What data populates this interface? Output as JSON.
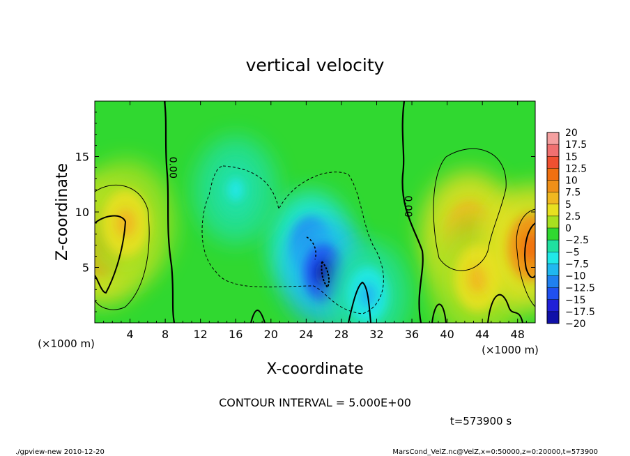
{
  "chart_data": {
    "type": "heatmap",
    "title": "vertical velocity",
    "xlabel": "X-coordinate",
    "ylabel": "Z-coordinate",
    "x_unit_label": "(×1000 m)",
    "y_unit_label": "(×1000 m)",
    "xlim": [
      0,
      50
    ],
    "ylim": [
      0,
      20
    ],
    "x_ticks": [
      4,
      8,
      12,
      16,
      20,
      24,
      28,
      32,
      36,
      40,
      44,
      48
    ],
    "y_ticks": [
      5,
      10,
      15
    ],
    "colorbar": {
      "levels": [
        "20",
        "17.5",
        "15",
        "12.5",
        "10",
        "7.5",
        "5",
        "2.5",
        "0",
        "-2.5",
        "-5",
        "-7.5",
        "-10",
        "-12.5",
        "-15",
        "-17.5",
        "-20"
      ],
      "values": [
        20,
        17.5,
        15,
        12.5,
        10,
        7.5,
        5,
        2.5,
        0,
        -2.5,
        -5,
        -7.5,
        -10,
        -12.5,
        -15,
        -17.5,
        -20
      ],
      "colors": [
        "#f4a0a0",
        "#f07070",
        "#f05030",
        "#f07010",
        "#f09018",
        "#f0b820",
        "#e8e020",
        "#a8e020",
        "#30d830",
        "#20e0a0",
        "#20e8e8",
        "#20b8f0",
        "#2080f0",
        "#2050f0",
        "#2020d8",
        "#1010a8",
        "#7020c0"
      ]
    },
    "contour_labels": [
      {
        "text": "0.00",
        "x": 8.5,
        "z": 14
      },
      {
        "text": "0.00",
        "x": 35.2,
        "z": 10.5
      }
    ],
    "contour_interval_text": "CONTOUR INTERVAL = 5.000E+00",
    "time_text": "t=573900  s",
    "features": [
      {
        "kind": "updraft",
        "x": 0.8,
        "z": 7.3,
        "peak": 12.5
      },
      {
        "kind": "updraft",
        "x": 3.5,
        "z": 9.0,
        "peak": 7.5
      },
      {
        "kind": "updraft",
        "x": 42.5,
        "z": 8.0,
        "peak": 10
      },
      {
        "kind": "updraft",
        "x": 43.5,
        "z": 4.0,
        "peak": 7.5
      },
      {
        "kind": "updraft",
        "x": 49.6,
        "z": 6.8,
        "peak": 12.5
      },
      {
        "kind": "downdraft",
        "x": 24.5,
        "z": 7.0,
        "peak": -12.5
      },
      {
        "kind": "downdraft",
        "x": 26.0,
        "z": 4.5,
        "peak": -17.5
      },
      {
        "kind": "downdraft",
        "x": 31.0,
        "z": 2.5,
        "peak": -7.5
      },
      {
        "kind": "downdraft",
        "x": 16.0,
        "z": 12.0,
        "peak": -5
      }
    ]
  },
  "footer": {
    "left": "./gpview-new   2010-12-20",
    "right": "MarsCond_VelZ.nc@VelZ,x=0:50000,z=0:20000,t=573900"
  }
}
